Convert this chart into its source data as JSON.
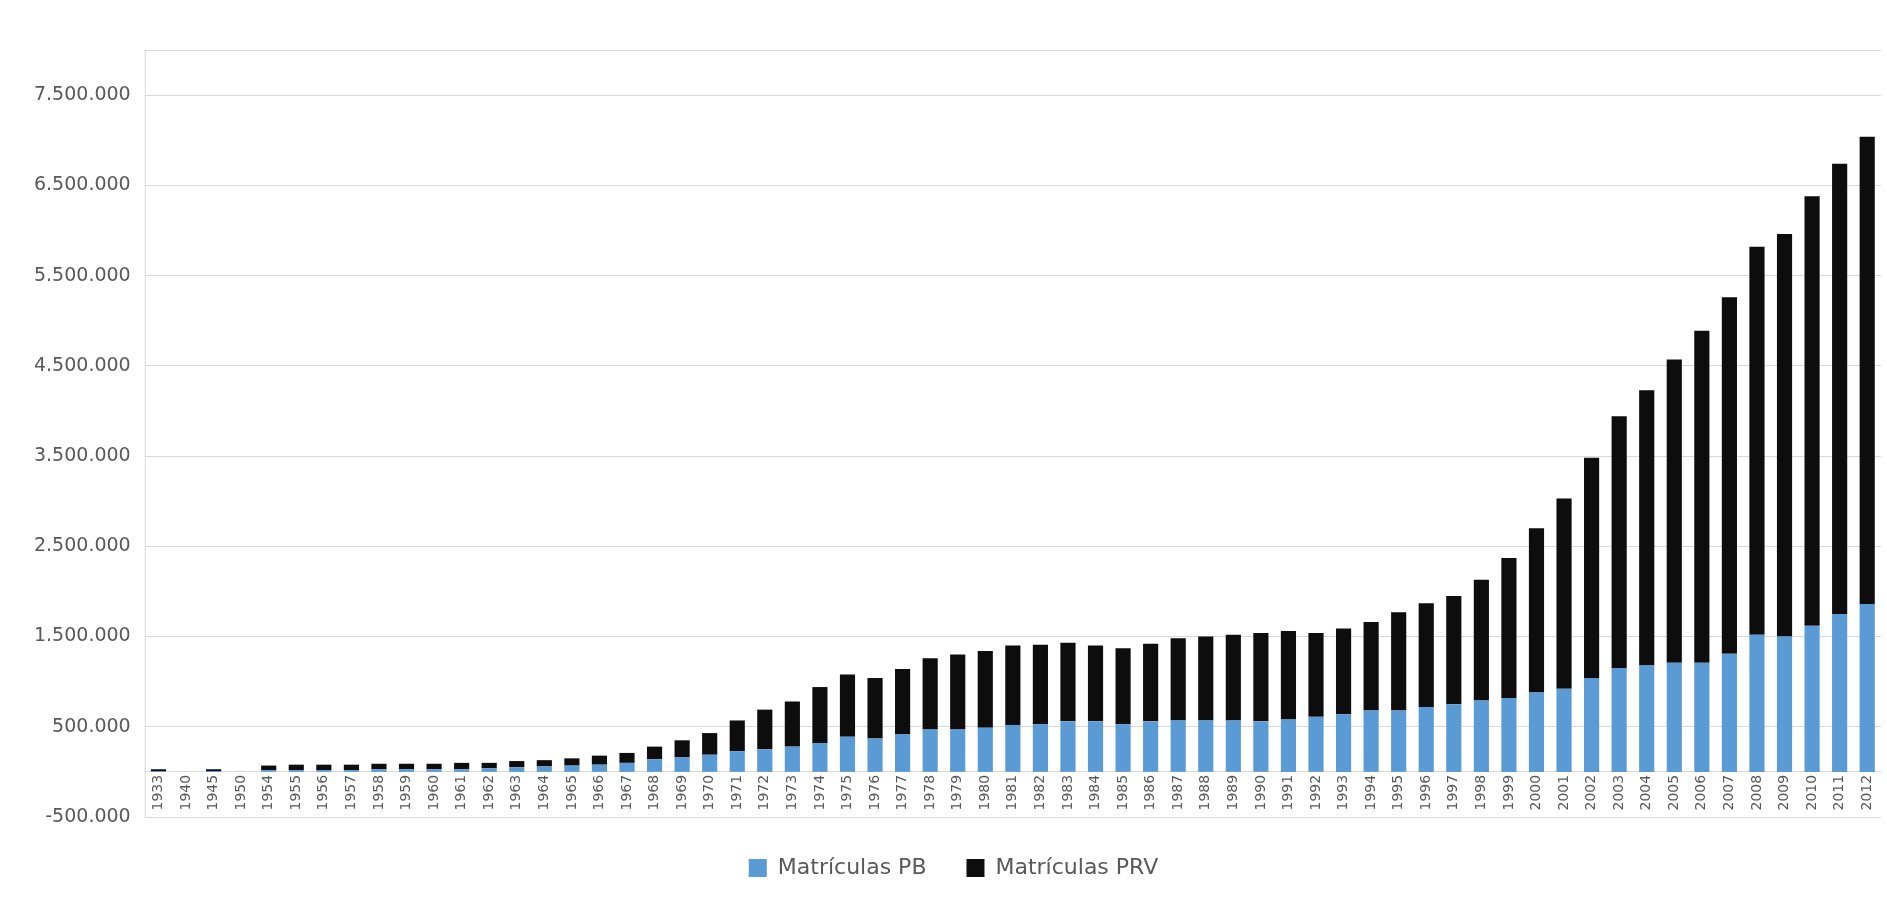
{
  "chart_data": {
    "type": "bar",
    "stacked": true,
    "categories": [
      "1933",
      "1940",
      "1945",
      "1950",
      "1954",
      "1955",
      "1956",
      "1957",
      "1958",
      "1959",
      "1960",
      "1961",
      "1962",
      "1963",
      "1964",
      "1965",
      "1966",
      "1967",
      "1968",
      "1969",
      "1970",
      "1971",
      "1972",
      "1973",
      "1974",
      "1975",
      "1976",
      "1977",
      "1978",
      "1979",
      "1980",
      "1981",
      "1982",
      "1983",
      "1984",
      "1985",
      "1986",
      "1987",
      "1988",
      "1989",
      "1990",
      "1991",
      "1992",
      "1993",
      "1994",
      "1995",
      "1996",
      "1997",
      "1998",
      "1999",
      "2000",
      "2001",
      "2002",
      "2003",
      "2004",
      "2005",
      "2006",
      "2007",
      "2008",
      "2009",
      "2010",
      "2011",
      "2012"
    ],
    "series": [
      {
        "name": "Matrículas PB",
        "color": "#5b9bd5",
        "values": [
          10000,
          0,
          10000,
          0,
          20000,
          20000,
          20000,
          20000,
          30000,
          30000,
          30000,
          30000,
          40000,
          50000,
          60000,
          70000,
          80000,
          100000,
          140000,
          160000,
          190000,
          230000,
          250000,
          280000,
          320000,
          390000,
          370000,
          420000,
          470000,
          470000,
          490000,
          520000,
          530000,
          560000,
          560000,
          530000,
          560000,
          570000,
          570000,
          570000,
          560000,
          580000,
          610000,
          640000,
          680000,
          680000,
          720000,
          750000,
          790000,
          820000,
          880000,
          920000,
          1040000,
          1150000,
          1180000,
          1210000,
          1210000,
          1310000,
          1520000,
          1500000,
          1620000,
          1750000,
          1860000
        ]
      },
      {
        "name": "Matrículas PRV",
        "color": "#0d0d0d",
        "values": [
          20000,
          0,
          20000,
          0,
          50000,
          60000,
          60000,
          60000,
          60000,
          60000,
          60000,
          70000,
          60000,
          70000,
          70000,
          80000,
          100000,
          110000,
          140000,
          190000,
          240000,
          340000,
          440000,
          500000,
          620000,
          690000,
          670000,
          720000,
          790000,
          830000,
          850000,
          880000,
          880000,
          870000,
          840000,
          840000,
          860000,
          910000,
          930000,
          950000,
          980000,
          980000,
          930000,
          950000,
          980000,
          1090000,
          1150000,
          1200000,
          1340000,
          1550000,
          1820000,
          2110000,
          2440000,
          2790000,
          3050000,
          3360000,
          3680000,
          3950000,
          4300000,
          4460000,
          4760000,
          4990000,
          5180000
        ]
      }
    ],
    "ylim": [
      -500000,
      8000000
    ],
    "yticks": [
      {
        "value": -500000,
        "label": "-500.000"
      },
      {
        "value": 500000,
        "label": "500.000"
      },
      {
        "value": 1500000,
        "label": "1.500.000"
      },
      {
        "value": 2500000,
        "label": "2.500.000"
      },
      {
        "value": 3500000,
        "label": "3.500.000"
      },
      {
        "value": 4500000,
        "label": "4.500.000"
      },
      {
        "value": 5500000,
        "label": "5.500.000"
      },
      {
        "value": 6500000,
        "label": "6.500.000"
      },
      {
        "value": 7500000,
        "label": "7.500.000"
      }
    ],
    "grid": "y",
    "legend": "bottom"
  }
}
